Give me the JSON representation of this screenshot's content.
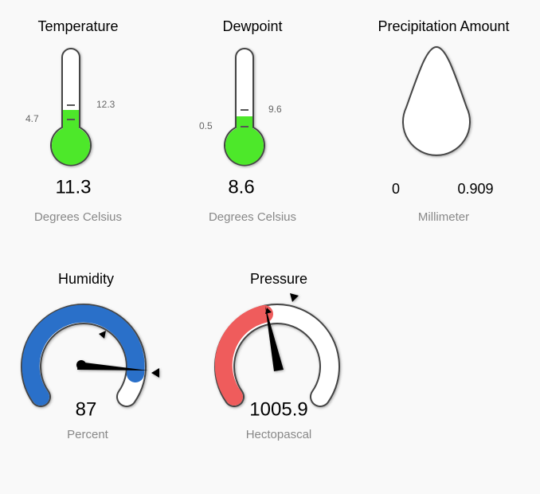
{
  "widgets": [
    {
      "title": "Temperature",
      "min_label": "4.7",
      "max_label": "12.3",
      "value": "11.3",
      "unit": "Degrees Celsius"
    },
    {
      "title": "Dewpoint",
      "min_label": "0.5",
      "max_label": "9.6",
      "value": "8.6",
      "unit": "Degrees Celsius"
    },
    {
      "title": "Precipitation Amount",
      "min_label": "0",
      "max_label": "0.909",
      "unit": "Millimeter"
    },
    {
      "title": "Humidity",
      "value": "87",
      "unit": "Percent"
    },
    {
      "title": "Pressure",
      "value": "1005.9",
      "unit": "Hectopascal"
    }
  ]
}
